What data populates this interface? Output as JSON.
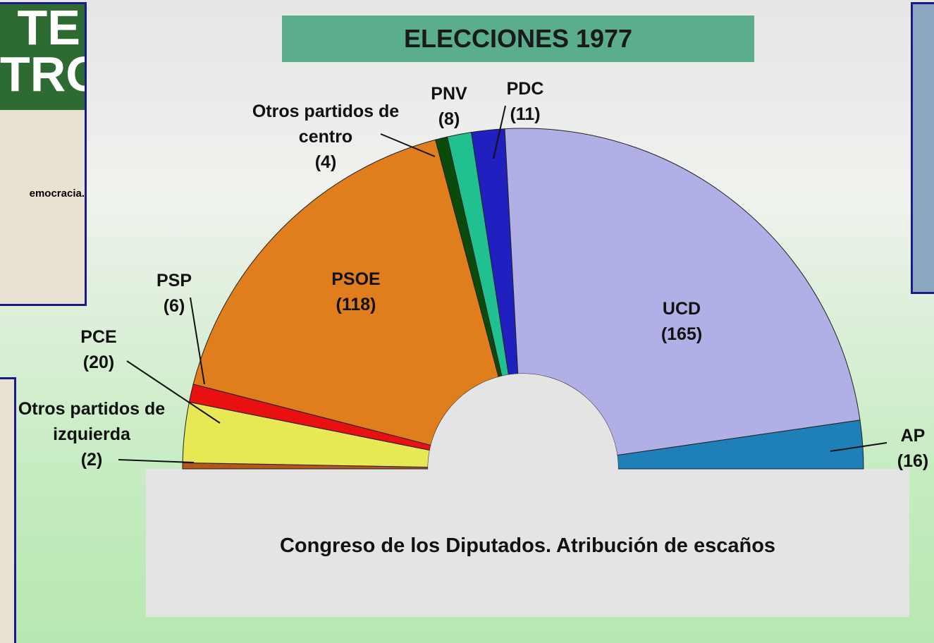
{
  "chart_data": {
    "type": "semicircle",
    "title": "ELECCIONES 1977",
    "subtitle": "Congreso de los Diputados. Atribución de escaños",
    "categories": [
      "Otros partidos de izquierda",
      "PCE",
      "PSP",
      "PSOE",
      "Otros partidos de centro",
      "PNV",
      "PDC",
      "UCD",
      "AP"
    ],
    "values": [
      2,
      20,
      6,
      118,
      4,
      8,
      11,
      165,
      16
    ],
    "value_labels": [
      "(2)",
      "(20)",
      "(6)",
      "(118)",
      "(4)",
      "(8)",
      "(11)",
      "(165)",
      "(16)"
    ],
    "colors": [
      "#b5561a",
      "#e8e855",
      "#e81010",
      "#e07e1e",
      "#0a4a0a",
      "#20c090",
      "#2020c0",
      "#b0b0e6",
      "#1f7fb8"
    ]
  },
  "posters": [
    "TE",
    "TRO",
    "emocracia."
  ]
}
